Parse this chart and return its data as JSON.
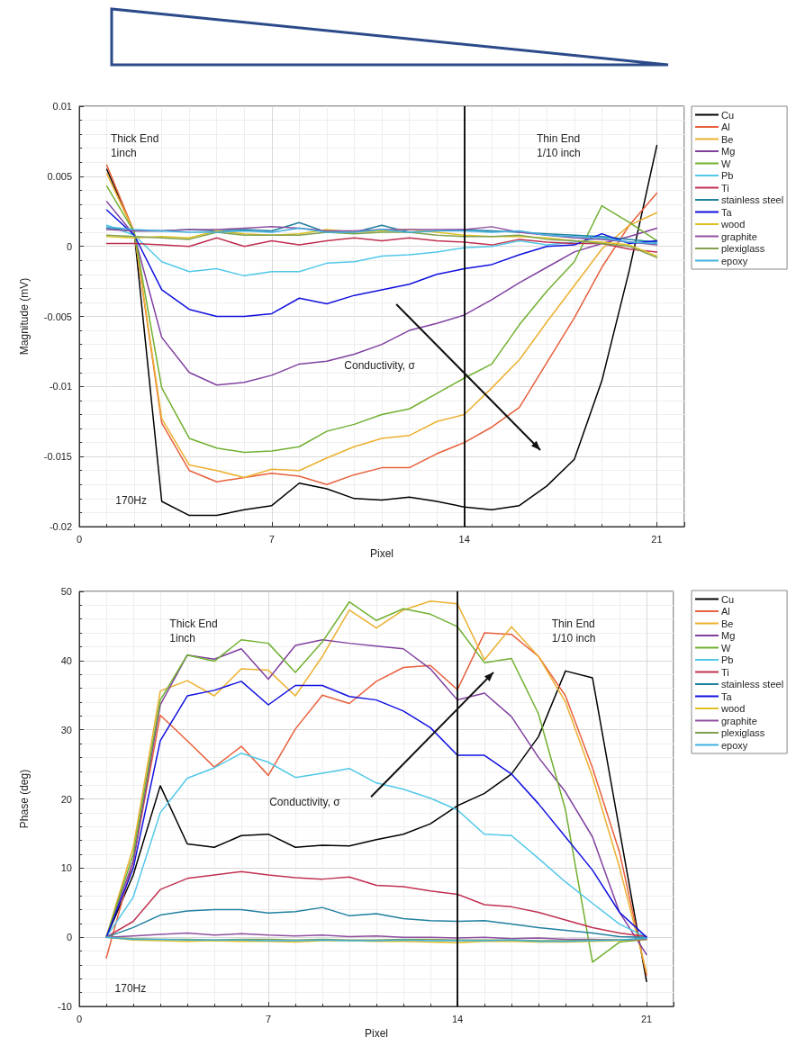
{
  "chart_data": [
    {
      "type": "line",
      "xlabel": "Pixel",
      "ylabel": "Magnitude (mV)",
      "x": [
        1,
        2,
        3,
        4,
        5,
        6,
        7,
        8,
        9,
        10,
        11,
        12,
        13,
        14,
        15,
        16,
        17,
        18,
        19,
        20,
        21
      ],
      "xlim": [
        0,
        22
      ],
      "xticks": [
        0,
        7,
        14,
        21
      ],
      "ylim": [
        -0.02,
        0.01
      ],
      "yticks": [
        -0.02,
        -0.015,
        -0.01,
        -0.005,
        0,
        0.005,
        0.01
      ],
      "grid": true,
      "legend": "right",
      "marker": "none",
      "line_style": "solid",
      "ref_lines": [
        {
          "axis": "x",
          "value": 14,
          "color": "#000000"
        }
      ],
      "annotations": [
        "Thick End\n1inch",
        "Thin End\n1/10 inch",
        "Conductivity, σ",
        "170Hz"
      ],
      "series": [
        {
          "name": "Cu",
          "color": "#000000",
          "values": [
            0.0055,
            0.001,
            -0.0182,
            -0.0192,
            -0.0192,
            -0.0188,
            -0.0185,
            -0.0169,
            -0.0173,
            -0.018,
            -0.0181,
            -0.0179,
            -0.0182,
            -0.0186,
            -0.0188,
            -0.0185,
            -0.0171,
            -0.0152,
            -0.0096,
            -0.0017,
            0.0072
          ]
        },
        {
          "name": "Al",
          "color": "#e8603c",
          "values": [
            0.0058,
            0.001,
            -0.0126,
            -0.016,
            -0.0168,
            -0.0165,
            -0.0162,
            -0.0164,
            -0.017,
            -0.0163,
            -0.0158,
            -0.0158,
            -0.0148,
            -0.014,
            -0.0129,
            -0.0115,
            -0.0083,
            -0.0051,
            -0.0015,
            0.0015,
            0.0038
          ]
        },
        {
          "name": "Be",
          "color": "#ecb030",
          "values": [
            0.0052,
            0.001,
            -0.0123,
            -0.0156,
            -0.016,
            -0.0165,
            -0.0159,
            -0.016,
            -0.0151,
            -0.0143,
            -0.0137,
            -0.0135,
            -0.0125,
            -0.012,
            -0.0101,
            -0.0081,
            -0.0054,
            -0.0028,
            -0.0002,
            0.0015,
            0.0024
          ]
        },
        {
          "name": "Mg",
          "color": "#8040a0",
          "values": [
            0.0032,
            0.0008,
            -0.0065,
            -0.009,
            -0.0099,
            -0.0097,
            -0.0092,
            -0.0084,
            -0.0082,
            -0.0077,
            -0.007,
            -0.006,
            -0.0055,
            -0.0049,
            -0.0038,
            -0.0026,
            -0.0015,
            -0.0004,
            0.0002,
            0.0007,
            0.0013
          ]
        },
        {
          "name": "W",
          "color": "#70b030",
          "values": [
            0.0043,
            0.001,
            -0.0101,
            -0.0137,
            -0.0144,
            -0.0147,
            -0.0146,
            -0.0143,
            -0.0132,
            -0.0127,
            -0.012,
            -0.0116,
            -0.0105,
            -0.0094,
            -0.0084,
            -0.0056,
            -0.0032,
            -0.0011,
            0.0029,
            0.0017,
            0.0004
          ]
        },
        {
          "name": "Pb",
          "color": "#50c8e8",
          "values": [
            0.0015,
            0.0008,
            -0.0011,
            -0.0018,
            -0.0016,
            -0.0021,
            -0.0018,
            -0.0018,
            -0.0012,
            -0.0011,
            -0.0007,
            -0.0006,
            -0.0004,
            -0.0001,
            0,
            0.0004,
            0.0001,
            0.0003,
            0.0006,
            0.0003,
            0.0002
          ]
        },
        {
          "name": "Ti",
          "color": "#c03050",
          "values": [
            0.0002,
            0.0002,
            0.0001,
            0,
            0.0006,
            0,
            0.0004,
            0.0001,
            0.0004,
            0.0006,
            0.0004,
            0.0006,
            0.0004,
            0.0003,
            0.0001,
            0.0005,
            0.0003,
            0.0002,
            0.0002,
            -0.0002,
            -0.0004
          ]
        },
        {
          "name": "stainless steel",
          "color": "#2080a0",
          "values": [
            0.0013,
            0.0011,
            0.0011,
            0.0012,
            0.0011,
            0.0012,
            0.0011,
            0.0017,
            0.001,
            0.001,
            0.0015,
            0.001,
            0.0011,
            0.0012,
            0.0011,
            0.001,
            0.0009,
            0.0008,
            0.0007,
            0.0005,
            0.0003
          ]
        },
        {
          "name": "Ta",
          "color": "#1010e0",
          "values": [
            0.0026,
            0.0008,
            -0.0031,
            -0.0045,
            -0.005,
            -0.005,
            -0.0048,
            -0.0037,
            -0.0041,
            -0.0035,
            -0.0031,
            -0.0027,
            -0.002,
            -0.0016,
            -0.0013,
            -0.0006,
            0,
            0.0001,
            0.0009,
            0.0002,
            0.0004
          ]
        },
        {
          "name": "wood",
          "color": "#e0c020",
          "values": [
            0.0007,
            0.0006,
            0.0007,
            0.0006,
            0.0011,
            0.0009,
            0.0008,
            0.0009,
            0.0012,
            0.001,
            0.0011,
            0.0012,
            0.001,
            0.0008,
            0.0007,
            0.0007,
            0.0006,
            0.0004,
            0.0003,
            0.0001,
            -0.0007
          ]
        },
        {
          "name": "graphite",
          "color": "#9050a0",
          "values": [
            0.0012,
            0.0011,
            0.0011,
            0.0012,
            0.0012,
            0.0013,
            0.0014,
            0.0013,
            0.0011,
            0.0011,
            0.0012,
            0.0012,
            0.0012,
            0.0012,
            0.0014,
            0.001,
            0.0008,
            0.0006,
            0.0005,
            0.0003,
            0.0001
          ]
        },
        {
          "name": "plexiglass",
          "color": "#80a050",
          "values": [
            0.0008,
            0.0007,
            0.0006,
            0.0005,
            0.001,
            0.0008,
            0.0008,
            0.0008,
            0.001,
            0.0009,
            0.001,
            0.001,
            0.0008,
            0.0007,
            0.0007,
            0.0008,
            0.0005,
            0.0004,
            0.0002,
            0,
            -0.0008
          ]
        },
        {
          "name": "epoxy",
          "color": "#40b0e0",
          "values": [
            0.0014,
            0.0012,
            0.0011,
            0.001,
            0.001,
            0.0011,
            0.001,
            0.0013,
            0.001,
            0.001,
            0.0012,
            0.001,
            0.0011,
            0.0011,
            0.001,
            0.0011,
            0.0008,
            0.0007,
            0.0006,
            0.0003,
            0.0002
          ]
        }
      ]
    },
    {
      "type": "line",
      "xlabel": "Pixel",
      "ylabel": "Phase (deg)",
      "x": [
        1,
        2,
        3,
        4,
        5,
        6,
        7,
        8,
        9,
        10,
        11,
        12,
        13,
        14,
        15,
        16,
        17,
        18,
        19,
        20,
        21
      ],
      "xlim": [
        0,
        22
      ],
      "xticks": [
        0,
        7,
        14,
        21
      ],
      "ylim": [
        -10,
        50
      ],
      "yticks": [
        -10,
        0,
        10,
        20,
        30,
        40,
        50
      ],
      "grid": true,
      "legend": "right",
      "marker": "none",
      "line_style": "solid",
      "ref_lines": [
        {
          "axis": "x",
          "value": 14,
          "color": "#000000"
        }
      ],
      "annotations": [
        "Thick End\n1inch",
        "Thin End\n1/10 inch",
        "Conductivity, σ",
        "170Hz"
      ],
      "series": [
        {
          "name": "Cu",
          "color": "#000000",
          "values": [
            0,
            9,
            21.9,
            13.5,
            13,
            14.7,
            14.9,
            13,
            13.3,
            13.2,
            14.1,
            14.9,
            16.4,
            19,
            20.8,
            23.6,
            29,
            38.5,
            37.5,
            15.5,
            -6.4
          ]
        },
        {
          "name": "Al",
          "color": "#e8603c",
          "values": [
            -3,
            11,
            32.1,
            28.4,
            24.6,
            27.6,
            23.4,
            30.1,
            35,
            33.8,
            37,
            39,
            39.3,
            35.8,
            44,
            43.8,
            40.6,
            34.9,
            24.5,
            12.3,
            -5.5
          ]
        },
        {
          "name": "Be",
          "color": "#ecb030",
          "values": [
            0,
            13,
            35.6,
            37.1,
            34.9,
            38.8,
            38.6,
            34.9,
            40.6,
            47.3,
            44.7,
            47.3,
            48.6,
            48.2,
            40.1,
            44.9,
            40.6,
            34,
            23.2,
            10.1,
            -5.1
          ]
        },
        {
          "name": "Mg",
          "color": "#8040a0",
          "values": [
            0,
            11,
            33.6,
            40.8,
            40.2,
            41.7,
            37.3,
            42.2,
            43,
            42.5,
            42.1,
            41.7,
            38.8,
            34.3,
            35.3,
            31.9,
            26,
            21,
            14.5,
            3.6,
            -2.5
          ]
        },
        {
          "name": "W",
          "color": "#70b030",
          "values": [
            0,
            12,
            34.3,
            40.8,
            39.9,
            43,
            42.5,
            38.3,
            42.7,
            48.5,
            45.8,
            47.5,
            46.7,
            44.9,
            39.7,
            40.3,
            32.3,
            18.4,
            -3.6,
            -0.7,
            -0.3
          ]
        },
        {
          "name": "Pb",
          "color": "#50c8e8",
          "values": [
            0,
            5.8,
            18,
            23,
            24.5,
            26.6,
            25.3,
            23.1,
            23.7,
            24.4,
            22.3,
            21.4,
            20.1,
            18.4,
            14.9,
            14.7,
            11.4,
            8,
            4.9,
            1.9,
            0
          ]
        },
        {
          "name": "Ti",
          "color": "#c03050",
          "values": [
            0,
            2.3,
            6.9,
            8.5,
            9,
            9.5,
            9,
            8.6,
            8.4,
            8.7,
            7.5,
            7.3,
            6.7,
            6.2,
            4.7,
            4.4,
            3.6,
            2.5,
            1.4,
            0.6,
            0.1
          ]
        },
        {
          "name": "stainless steel",
          "color": "#2080a0",
          "values": [
            0,
            1.4,
            3.2,
            3.8,
            4,
            4,
            3.5,
            3.7,
            4.3,
            3.1,
            3.4,
            2.7,
            2.4,
            2.3,
            2.4,
            1.9,
            1.4,
            1,
            0.6,
            0.1,
            0
          ]
        },
        {
          "name": "Ta",
          "color": "#1010e0",
          "values": [
            0,
            10,
            28.4,
            34.9,
            35.7,
            37,
            33.6,
            36.4,
            36.4,
            34.8,
            34.3,
            32.7,
            30.3,
            26.3,
            26.3,
            23.6,
            19.3,
            14.5,
            9.7,
            3.6,
            0
          ]
        },
        {
          "name": "wood",
          "color": "#e0c020",
          "values": [
            0,
            -0.4,
            -0.5,
            -0.6,
            -0.5,
            -0.6,
            -0.6,
            -0.7,
            -0.5,
            -0.5,
            -0.6,
            -0.6,
            -0.7,
            -0.8,
            -0.6,
            -0.6,
            -0.7,
            -0.7,
            -0.6,
            -0.5,
            -0.3
          ]
        },
        {
          "name": "graphite",
          "color": "#9050a0",
          "values": [
            0,
            0.2,
            0.4,
            0.6,
            0.3,
            0.5,
            0.3,
            0.2,
            0.3,
            0.1,
            0.2,
            0,
            0,
            -0.1,
            0,
            -0.2,
            -0.1,
            -0.3,
            -0.3,
            -0.4,
            -0.3
          ]
        },
        {
          "name": "plexiglass",
          "color": "#80a050",
          "values": [
            0,
            -0.2,
            -0.3,
            -0.3,
            -0.4,
            -0.3,
            -0.3,
            -0.4,
            -0.3,
            -0.4,
            -0.4,
            -0.3,
            -0.3,
            -0.4,
            -0.4,
            -0.4,
            -0.5,
            -0.5,
            -0.4,
            -0.4,
            -0.2
          ]
        },
        {
          "name": "epoxy",
          "color": "#40b0e0",
          "values": [
            0,
            -0.3,
            -0.3,
            -0.4,
            -0.4,
            -0.4,
            -0.5,
            -0.5,
            -0.4,
            -0.5,
            -0.5,
            -0.4,
            -0.5,
            -0.5,
            -0.5,
            -0.4,
            -0.6,
            -0.6,
            -0.5,
            -0.4,
            -0.1
          ]
        }
      ]
    }
  ]
}
